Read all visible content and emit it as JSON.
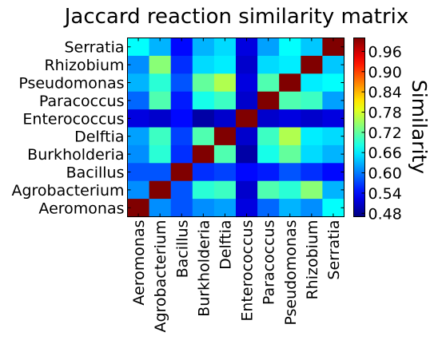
{
  "chart_data": {
    "type": "heatmap",
    "title": "Jaccard reaction similarity matrix",
    "xlabel": "",
    "ylabel": "",
    "colorbar_label": "Similarity",
    "colormap": "jet",
    "vmin": 0.47,
    "vmax": 1.0,
    "colorbar_ticks": [
      "0.48",
      "0.54",
      "0.60",
      "0.66",
      "0.72",
      "0.78",
      "0.84",
      "0.90",
      "0.96"
    ],
    "row_labels": [
      "Serratia",
      "Rhizobium",
      "Pseudomonas",
      "Paracoccus",
      "Enterococcus",
      "Delftia",
      "Burkholderia",
      "Bacillus",
      "Agrobacterium",
      "Aeromonas"
    ],
    "col_labels": [
      "Aeromonas",
      "Agrobacterium",
      "Bacillus",
      "Burkholderia",
      "Delftia",
      "Enterococcus",
      "Paracoccus",
      "Pseudomonas",
      "Rhizobium",
      "Serratia"
    ],
    "matrix": [
      [
        0.67,
        0.63,
        0.54,
        0.63,
        0.65,
        0.52,
        0.62,
        0.67,
        0.64,
        1.0
      ],
      [
        0.61,
        0.74,
        0.56,
        0.65,
        0.66,
        0.51,
        0.65,
        0.66,
        1.0,
        0.64
      ],
      [
        0.63,
        0.69,
        0.58,
        0.72,
        0.76,
        0.52,
        0.71,
        1.0,
        0.66,
        0.67
      ],
      [
        0.59,
        0.71,
        0.55,
        0.68,
        0.7,
        0.51,
        1.0,
        0.71,
        0.7,
        0.62
      ],
      [
        0.52,
        0.51,
        0.54,
        0.49,
        0.51,
        1.0,
        0.51,
        0.52,
        0.51,
        0.52
      ],
      [
        0.62,
        0.7,
        0.57,
        0.71,
        1.0,
        0.51,
        0.7,
        0.76,
        0.66,
        0.65
      ],
      [
        0.61,
        0.69,
        0.56,
        1.0,
        0.71,
        0.49,
        0.68,
        0.72,
        0.65,
        0.63
      ],
      [
        0.58,
        0.58,
        1.0,
        0.56,
        0.57,
        0.54,
        0.55,
        0.58,
        0.56,
        0.54
      ],
      [
        0.61,
        1.0,
        0.58,
        0.69,
        0.7,
        0.51,
        0.71,
        0.69,
        0.74,
        0.63
      ],
      [
        1.0,
        0.61,
        0.58,
        0.61,
        0.62,
        0.52,
        0.59,
        0.63,
        0.61,
        0.67
      ]
    ]
  }
}
